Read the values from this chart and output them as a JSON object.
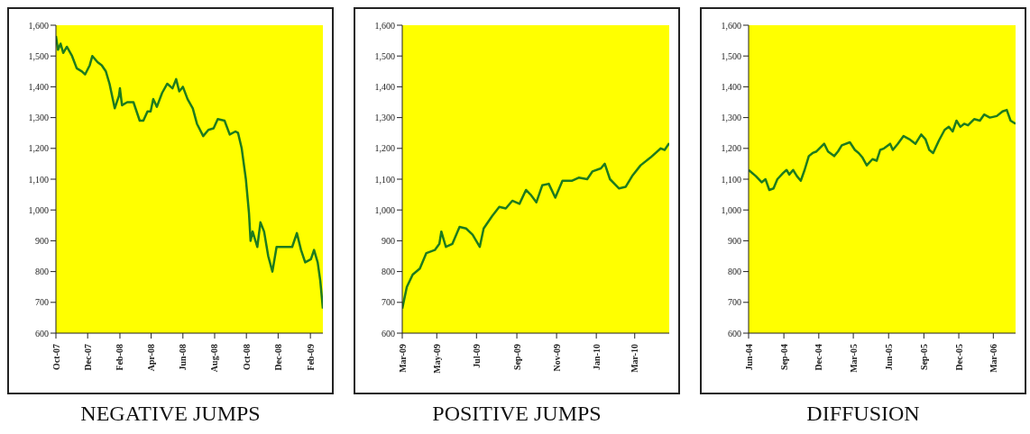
{
  "chart_data": [
    {
      "type": "line",
      "title": "NEGATIVE JUMPS",
      "grid": false,
      "marker": "none",
      "xlim": [
        "2007-10-01",
        "2009-02-25"
      ],
      "ylim": [
        600,
        1600
      ],
      "yticks": [
        600,
        700,
        800,
        900,
        {
          "value": 1000,
          "label": "1,000"
        },
        {
          "value": 1100,
          "label": "1,100"
        },
        {
          "value": 1200,
          "label": "1,200"
        },
        {
          "value": 1300,
          "label": "1,300"
        },
        {
          "value": 1400,
          "label": "1,400"
        },
        {
          "value": 1500,
          "label": "1,500"
        },
        {
          "value": 1600,
          "label": "1,600"
        }
      ],
      "xticks": [
        {
          "value": "2007-10-01",
          "label": "Oct-07"
        },
        {
          "value": "2007-12-01",
          "label": "Dec-07"
        },
        {
          "value": "2008-02-01",
          "label": "Feb-08"
        },
        {
          "value": "2008-04-01",
          "label": "Apr-08"
        },
        {
          "value": "2008-06-01",
          "label": "Jun-08"
        },
        {
          "value": "2008-08-01",
          "label": "Aug-08"
        },
        {
          "value": "2008-10-01",
          "label": "Oct-08"
        },
        {
          "value": "2008-12-01",
          "label": "Dec-08"
        },
        {
          "value": "2009-02-01",
          "label": "Feb-09"
        }
      ],
      "series": [
        {
          "color": "#1e7b1e",
          "x": [
            "2007-10-01",
            "2007-10-05",
            "2007-10-10",
            "2007-10-15",
            "2007-10-22",
            "2007-11-01",
            "2007-11-10",
            "2007-11-20",
            "2007-11-26",
            "2007-12-05",
            "2007-12-10",
            "2007-12-20",
            "2007-12-28",
            "2008-01-05",
            "2008-01-12",
            "2008-01-22",
            "2008-01-30",
            "2008-02-01",
            "2008-02-05",
            "2008-02-15",
            "2008-02-27",
            "2008-03-10",
            "2008-03-17",
            "2008-03-25",
            "2008-03-31",
            "2008-04-05",
            "2008-04-12",
            "2008-04-22",
            "2008-05-02",
            "2008-05-12",
            "2008-05-19",
            "2008-05-25",
            "2008-06-01",
            "2008-06-10",
            "2008-06-20",
            "2008-06-28",
            "2008-07-10",
            "2008-07-20",
            "2008-07-30",
            "2008-08-07",
            "2008-08-20",
            "2008-08-30",
            "2008-09-10",
            "2008-09-15",
            "2008-09-22",
            "2008-09-30",
            "2008-10-06",
            "2008-10-09",
            "2008-10-13",
            "2008-10-22",
            "2008-10-28",
            "2008-11-04",
            "2008-11-12",
            "2008-11-20",
            "2008-11-28",
            "2008-12-10",
            "2008-12-20",
            "2008-12-28",
            "2009-01-06",
            "2009-01-14",
            "2009-01-22",
            "2009-02-02",
            "2009-02-08",
            "2009-02-15",
            "2009-02-20",
            "2009-02-25"
          ],
          "values": [
            1565,
            1520,
            1540,
            1510,
            1530,
            1500,
            1460,
            1450,
            1440,
            1470,
            1500,
            1480,
            1470,
            1450,
            1410,
            1330,
            1370,
            1395,
            1340,
            1350,
            1350,
            1290,
            1290,
            1320,
            1320,
            1360,
            1335,
            1380,
            1410,
            1395,
            1425,
            1385,
            1400,
            1360,
            1330,
            1280,
            1240,
            1260,
            1265,
            1295,
            1290,
            1245,
            1255,
            1250,
            1200,
            1100,
            990,
            900,
            930,
            880,
            960,
            930,
            850,
            800,
            880,
            880,
            880,
            880,
            925,
            870,
            830,
            840,
            870,
            830,
            770,
            680
          ]
        }
      ]
    },
    {
      "type": "line",
      "title": "POSITIVE JUMPS",
      "grid": false,
      "marker": "none",
      "xlim": [
        "2009-03-09",
        "2010-04-23"
      ],
      "ylim": [
        600,
        1600
      ],
      "yticks": [
        600,
        700,
        800,
        900,
        {
          "value": 1000,
          "label": "1,000"
        },
        {
          "value": 1100,
          "label": "1,100"
        },
        {
          "value": 1200,
          "label": "1,200"
        },
        {
          "value": 1300,
          "label": "1,300"
        },
        {
          "value": 1400,
          "label": "1,400"
        },
        {
          "value": 1500,
          "label": "1,500"
        },
        {
          "value": 1600,
          "label": "1,600"
        }
      ],
      "xticks": [
        {
          "value": "2009-03-09",
          "label": "Mar-09"
        },
        {
          "value": "2009-05-01",
          "label": "May-09"
        },
        {
          "value": "2009-07-01",
          "label": "Jul-09"
        },
        {
          "value": "2009-09-01",
          "label": "Sep-09"
        },
        {
          "value": "2009-11-01",
          "label": "Nov-09"
        },
        {
          "value": "2010-01-01",
          "label": "Jan-10"
        },
        {
          "value": "2010-03-01",
          "label": "Mar-10"
        }
      ],
      "series": [
        {
          "color": "#1e7b1e",
          "x": [
            "2009-03-09",
            "2009-03-16",
            "2009-03-25",
            "2009-04-05",
            "2009-04-15",
            "2009-04-28",
            "2009-05-05",
            "2009-05-08",
            "2009-05-15",
            "2009-05-25",
            "2009-06-05",
            "2009-06-15",
            "2009-06-25",
            "2009-07-06",
            "2009-07-12",
            "2009-07-25",
            "2009-08-05",
            "2009-08-15",
            "2009-08-25",
            "2009-09-05",
            "2009-09-15",
            "2009-09-22",
            "2009-10-01",
            "2009-10-10",
            "2009-10-20",
            "2009-10-30",
            "2009-11-10",
            "2009-11-25",
            "2009-12-05",
            "2009-12-18",
            "2009-12-26",
            "2010-01-08",
            "2010-01-14",
            "2010-01-22",
            "2010-02-05",
            "2010-02-15",
            "2010-02-25",
            "2010-03-10",
            "2010-03-25",
            "2010-04-10",
            "2010-04-16",
            "2010-04-23"
          ],
          "values": [
            680,
            750,
            790,
            810,
            860,
            870,
            890,
            930,
            880,
            890,
            945,
            940,
            920,
            880,
            940,
            980,
            1010,
            1005,
            1030,
            1020,
            1065,
            1050,
            1025,
            1080,
            1085,
            1040,
            1095,
            1095,
            1105,
            1100,
            1125,
            1135,
            1150,
            1100,
            1070,
            1075,
            1110,
            1145,
            1170,
            1200,
            1195,
            1217
          ]
        }
      ]
    },
    {
      "type": "line",
      "title": "DIFFUSION",
      "grid": false,
      "marker": "none",
      "xlim": [
        "2004-06-01",
        "2006-04-28"
      ],
      "ylim": [
        600,
        1600
      ],
      "yticks": [
        600,
        700,
        800,
        900,
        {
          "value": 1000,
          "label": "1,000"
        },
        {
          "value": 1100,
          "label": "1,100"
        },
        {
          "value": 1200,
          "label": "1,200"
        },
        {
          "value": 1300,
          "label": "1,300"
        },
        {
          "value": 1400,
          "label": "1,400"
        },
        {
          "value": 1500,
          "label": "1,500"
        },
        {
          "value": 1600,
          "label": "1,600"
        }
      ],
      "xticks": [
        {
          "value": "2004-06-01",
          "label": "Jun-04"
        },
        {
          "value": "2004-09-01",
          "label": "Sep-04"
        },
        {
          "value": "2004-12-01",
          "label": "Dec-04"
        },
        {
          "value": "2005-03-01",
          "label": "Mar-05"
        },
        {
          "value": "2005-06-01",
          "label": "Jun-05"
        },
        {
          "value": "2005-09-01",
          "label": "Sep-05"
        },
        {
          "value": "2005-12-01",
          "label": "Dec-05"
        },
        {
          "value": "2006-03-01",
          "label": "Mar-06"
        }
      ],
      "series": [
        {
          "color": "#1e7b1e",
          "x": [
            "2004-06-01",
            "2004-06-20",
            "2004-07-05",
            "2004-07-15",
            "2004-07-25",
            "2004-08-05",
            "2004-08-15",
            "2004-08-30",
            "2004-09-08",
            "2004-09-15",
            "2004-09-25",
            "2004-10-05",
            "2004-10-15",
            "2004-10-25",
            "2004-11-05",
            "2004-11-15",
            "2004-11-25",
            "2004-12-15",
            "2004-12-25",
            "2005-01-10",
            "2005-01-20",
            "2005-01-30",
            "2005-02-20",
            "2005-03-05",
            "2005-03-15",
            "2005-03-25",
            "2005-04-05",
            "2005-04-20",
            "2005-05-01",
            "2005-05-10",
            "2005-05-20",
            "2005-06-05",
            "2005-06-12",
            "2005-06-25",
            "2005-07-10",
            "2005-07-25",
            "2005-08-10",
            "2005-08-25",
            "2005-09-05",
            "2005-09-15",
            "2005-09-25",
            "2005-10-10",
            "2005-10-25",
            "2005-11-05",
            "2005-11-15",
            "2005-11-25",
            "2005-12-05",
            "2005-12-15",
            "2005-12-25",
            "2006-01-10",
            "2006-01-25",
            "2006-02-05",
            "2006-02-20",
            "2006-03-10",
            "2006-03-25",
            "2006-04-05",
            "2006-04-15",
            "2006-04-28"
          ],
          "values": [
            1130,
            1110,
            1090,
            1100,
            1065,
            1070,
            1100,
            1120,
            1130,
            1115,
            1130,
            1110,
            1095,
            1130,
            1175,
            1185,
            1190,
            1215,
            1190,
            1175,
            1190,
            1210,
            1220,
            1195,
            1185,
            1170,
            1145,
            1165,
            1160,
            1195,
            1200,
            1215,
            1195,
            1215,
            1240,
            1230,
            1215,
            1245,
            1230,
            1195,
            1185,
            1225,
            1260,
            1270,
            1255,
            1290,
            1270,
            1280,
            1275,
            1295,
            1290,
            1310,
            1300,
            1305,
            1320,
            1325,
            1290,
            1280
          ]
        }
      ]
    }
  ]
}
